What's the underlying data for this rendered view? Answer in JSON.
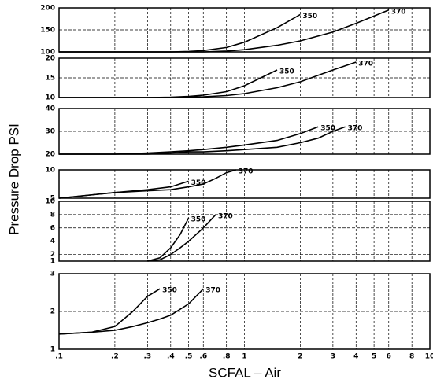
{
  "x_axis": {
    "label": "SCFAL – Air",
    "log": true,
    "xlim": [
      0.1,
      10
    ],
    "xticks": [
      {
        "value": 0.1,
        "label": ".1"
      },
      {
        "value": 0.2,
        "label": ".2"
      },
      {
        "value": 0.3,
        "label": ".3"
      },
      {
        "value": 0.4,
        "label": ".4"
      },
      {
        "value": 0.5,
        "label": ".5"
      },
      {
        "value": 0.6,
        "label": ".6"
      },
      {
        "value": 0.8,
        "label": ".8"
      },
      1,
      2,
      3,
      4,
      5,
      6,
      8,
      10
    ]
  },
  "y_axis_label": "Pressure Drop PSI",
  "chart_data": [
    {
      "type": "line",
      "x": [
        0.1,
        0.2,
        0.3,
        0.4,
        0.5,
        0.6,
        0.8,
        1,
        1.5,
        2,
        3,
        4,
        6
      ],
      "ylim": [
        100,
        200
      ],
      "yticks": [
        100,
        150,
        200
      ],
      "grid": true,
      "series": [
        {
          "name": "350",
          "color": "#000",
          "values": [
            100,
            100,
            100,
            100,
            101,
            103,
            110,
            122,
            155,
            185,
            null,
            null,
            null
          ]
        },
        {
          "name": "370",
          "color": "#000",
          "values": [
            100,
            100,
            100,
            100,
            100,
            100,
            102,
            105,
            115,
            125,
            145,
            165,
            195
          ]
        }
      ]
    },
    {
      "type": "line",
      "x": [
        0.1,
        0.2,
        0.3,
        0.4,
        0.5,
        0.6,
        0.8,
        1,
        1.5,
        2,
        3,
        4
      ],
      "ylim": [
        10,
        20
      ],
      "yticks": [
        10,
        15,
        20
      ],
      "grid": true,
      "series": [
        {
          "name": "350",
          "color": "#000",
          "values": [
            10,
            10,
            10,
            10.1,
            10.3,
            10.6,
            11.5,
            13,
            17,
            null,
            null,
            null
          ]
        },
        {
          "name": "370",
          "color": "#000",
          "values": [
            10,
            10,
            10,
            10,
            10.1,
            10.2,
            10.5,
            11,
            12.5,
            14,
            17,
            19
          ]
        }
      ]
    },
    {
      "type": "line",
      "x": [
        0.1,
        0.2,
        0.3,
        0.4,
        0.5,
        0.6,
        0.8,
        1,
        1.5,
        2,
        2.5,
        3,
        3.5
      ],
      "ylim": [
        20,
        40
      ],
      "yticks": [
        20,
        30,
        40
      ],
      "grid": true,
      "series": [
        {
          "name": "350",
          "color": "#000",
          "values": [
            20,
            20,
            20.5,
            21,
            21.5,
            22,
            23,
            24,
            26,
            29,
            32,
            null,
            null
          ]
        },
        {
          "name": "370",
          "color": "#000",
          "values": [
            20,
            20,
            20,
            20.5,
            21,
            21,
            21.5,
            22,
            23,
            25,
            27,
            30,
            32
          ]
        }
      ]
    },
    {
      "type": "line",
      "x": [
        0.1,
        0.2,
        0.3,
        0.4,
        0.5,
        0.6,
        0.7,
        0.8,
        0.9
      ],
      "ylim": [
        5,
        10
      ],
      "yticks": [
        5,
        10
      ],
      "grid": true,
      "series": [
        {
          "name": "350",
          "color": "#000",
          "values": [
            5,
            6,
            6.5,
            7,
            8,
            null,
            null,
            null,
            null
          ]
        },
        {
          "name": "370",
          "color": "#000",
          "values": [
            5,
            6,
            6.3,
            6.5,
            7,
            7.5,
            8.5,
            9.5,
            10
          ]
        }
      ]
    },
    {
      "type": "line",
      "x": [
        0.3,
        0.35,
        0.4,
        0.45,
        0.5,
        0.6,
        0.7
      ],
      "ylim": [
        1,
        10
      ],
      "yticks": [
        1,
        2,
        4,
        6,
        8,
        10
      ],
      "grid": true,
      "series": [
        {
          "name": "350",
          "color": "#000",
          "values": [
            1,
            1.5,
            3,
            5,
            7.5,
            null,
            null
          ]
        },
        {
          "name": "370",
          "color": "#000",
          "values": [
            1,
            1.2,
            2,
            3,
            4,
            6,
            8
          ]
        }
      ]
    },
    {
      "type": "line",
      "x": [
        0.1,
        0.15,
        0.2,
        0.25,
        0.3,
        0.35,
        0.4,
        0.5,
        0.6
      ],
      "ylim": [
        1,
        3
      ],
      "yticks": [
        1,
        2,
        3
      ],
      "grid": true,
      "series": [
        {
          "name": "350",
          "color": "#000",
          "values": [
            1.4,
            1.45,
            1.6,
            2.0,
            2.4,
            2.6,
            null,
            null,
            null
          ]
        },
        {
          "name": "370",
          "color": "#000",
          "values": [
            1.4,
            1.45,
            1.5,
            1.6,
            1.7,
            1.8,
            1.9,
            2.2,
            2.6
          ]
        }
      ]
    }
  ]
}
